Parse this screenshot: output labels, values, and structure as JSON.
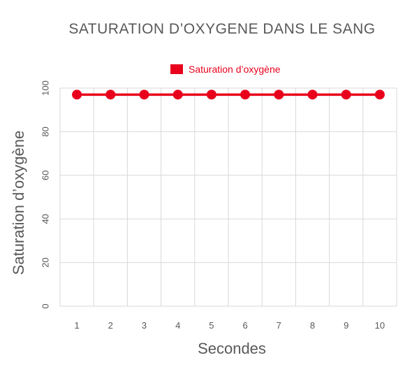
{
  "chart_data": {
    "type": "line",
    "title": "SATURATION D’OXYGENE DANS LE SANG",
    "xlabel": "Secondes",
    "ylabel": "Saturation d’oxygène",
    "x": [
      1,
      2,
      3,
      4,
      5,
      6,
      7,
      8,
      9,
      10
    ],
    "ylim": [
      0,
      100
    ],
    "yticks": [
      0,
      20,
      40,
      60,
      80,
      100
    ],
    "grid": true,
    "legend_position": "top-center",
    "series": [
      {
        "name": "Saturation d’oxygène",
        "values": [
          97,
          97,
          97,
          97,
          97,
          97,
          97,
          97,
          97,
          97
        ],
        "color": "#e8001c"
      }
    ]
  }
}
